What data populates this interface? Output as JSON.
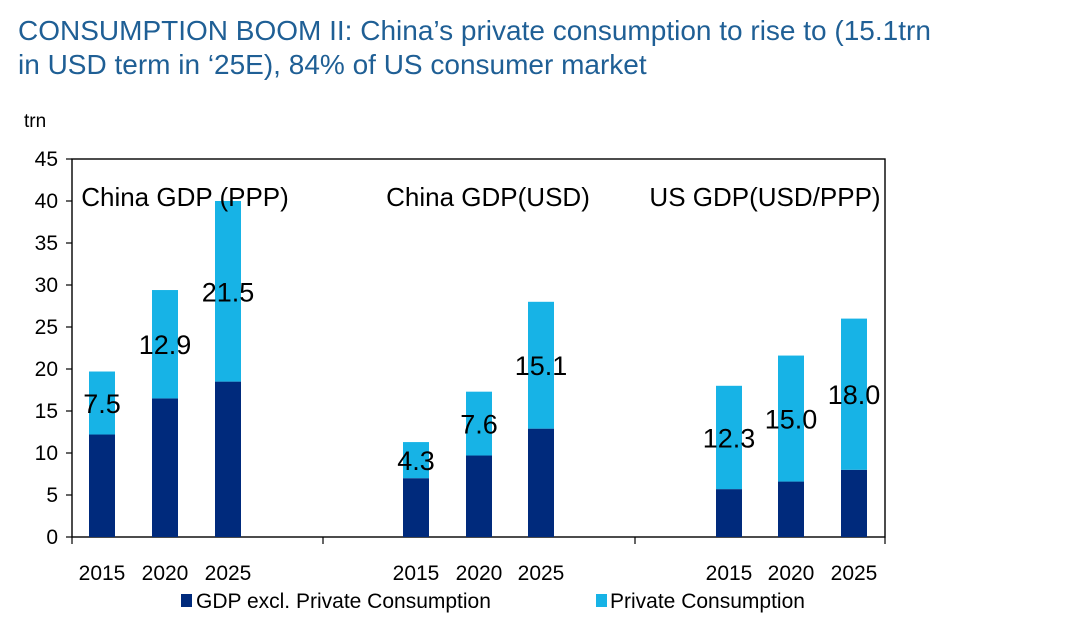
{
  "title_lines": [
    "CONSUMPTION BOOM II: China’s private consumption to rise to (15.1trn",
    "in USD term in ‘25E), 84% of US consumer market"
  ],
  "colors": {
    "title": "#1f5f95",
    "gdp_excl": "#002a7c",
    "private_consumption": "#17b3e6",
    "axis": "#000000"
  },
  "chart_data": {
    "type": "bar",
    "stacked": true,
    "unit_label": "trn",
    "ylim": [
      0,
      45
    ],
    "yticks": [
      0,
      5,
      10,
      15,
      20,
      25,
      30,
      35,
      40,
      45
    ],
    "legend": [
      {
        "key": "gdp_excl",
        "label": "GDP excl. Private Consumption"
      },
      {
        "key": "private_consumption",
        "label": "Private Consumption"
      }
    ],
    "groups": [
      {
        "name": "China  GDP (PPP)",
        "categories": [
          "2015",
          "2020",
          "2025"
        ],
        "gdp_excl": [
          12.2,
          16.5,
          18.5
        ],
        "private_consumption": [
          7.5,
          12.9,
          21.5
        ],
        "data_labels": [
          "7.5",
          "12.9",
          "21.5"
        ]
      },
      {
        "name": "China  GDP(USD)",
        "categories": [
          "2015",
          "2020",
          "2025"
        ],
        "gdp_excl": [
          7.0,
          9.7,
          12.9
        ],
        "private_consumption": [
          4.3,
          7.6,
          15.1
        ],
        "data_labels": [
          "4.3",
          "7.6",
          "15.1"
        ]
      },
      {
        "name": "US GDP(USD/PPP)",
        "categories": [
          "2015",
          "2020",
          "2025"
        ],
        "gdp_excl": [
          5.7,
          6.6,
          8.0
        ],
        "private_consumption": [
          12.3,
          15.0,
          18.0
        ],
        "data_labels": [
          "12.3",
          "15.0",
          "18.0"
        ]
      }
    ]
  }
}
